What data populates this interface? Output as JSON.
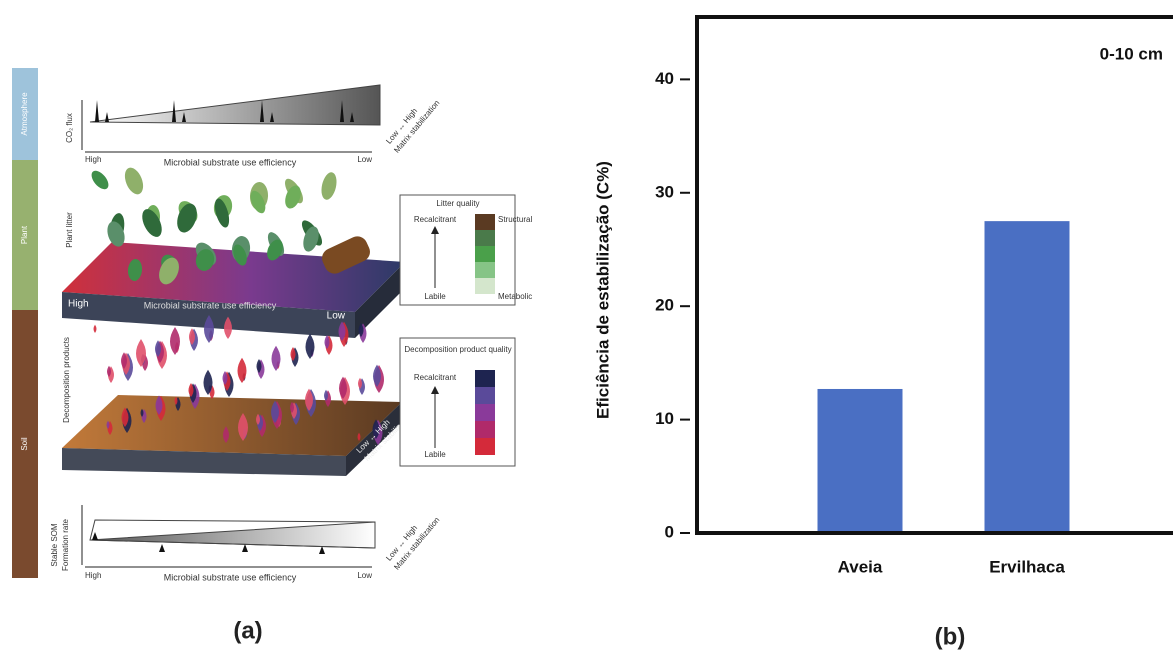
{
  "diagram": {
    "sidebar": [
      "Atmosphere",
      "Plant",
      "Soil"
    ],
    "co2_flux": "CO₂ flux",
    "top_axis": {
      "high": "High",
      "label": "Microbial substrate use efficiency",
      "low": "Low"
    },
    "top_matrix": [
      "Low ↔ High",
      "Matrix stabilization"
    ],
    "plant_litter": "Plant litter",
    "litter_slab": {
      "high": "High",
      "label": "Microbial substrate use efficiency",
      "low": "Low"
    },
    "litter_quality": {
      "title": "Litter quality",
      "recalcitrant": "Recalcitrant",
      "labile": "Labile",
      "structural": "Structural",
      "metabolic": "Metabolic"
    },
    "decomposition_products": "Decomposition products",
    "decomposition_slab": [
      "Low ↔ High",
      "Matrix stabilization"
    ],
    "decomposition_quality": {
      "title": "Decomposition product quality",
      "recalcitrant": "Recalcitrant",
      "labile": "Labile"
    },
    "stable_som": [
      "Stable SOM",
      "Formation rate"
    ],
    "bottom_axis": {
      "high": "High",
      "label": "Microbial substrate use efficiency",
      "low": "Low"
    },
    "bottom_matrix": [
      "Low ↔ High",
      "Matrix stabilization"
    ],
    "panel_label": "(a)"
  },
  "chart_data": {
    "type": "bar",
    "panel_label": "(b)",
    "annotation": "0-10 cm",
    "ylabel": "Eficiência de estabilização (C%)",
    "categories": [
      "Aveia",
      "Ervilhaca"
    ],
    "values": [
      12.7,
      27.5
    ],
    "color": "#4a6fc3",
    "ylim": [
      0,
      45.5
    ],
    "yticks": [
      0,
      10,
      20,
      30,
      40
    ]
  }
}
